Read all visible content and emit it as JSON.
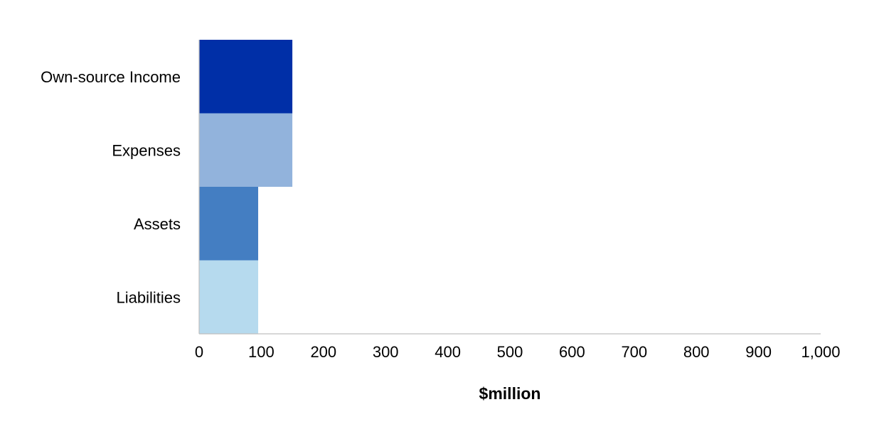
{
  "chart_data": {
    "type": "bar",
    "orientation": "horizontal",
    "categories": [
      "Own-source Income",
      "Expenses",
      "Assets",
      "Liabilities"
    ],
    "values": [
      150,
      150,
      95,
      95
    ],
    "colors": [
      "#002FA7",
      "#92B3DC",
      "#447EC2",
      "#B6DAEE"
    ],
    "xlabel": "$million",
    "ylabel": "",
    "xlim": [
      0,
      1000
    ],
    "xticks": [
      0,
      100,
      200,
      300,
      400,
      500,
      600,
      700,
      800,
      900,
      1000
    ],
    "xtick_labels": [
      "0",
      "100",
      "200",
      "300",
      "400",
      "500",
      "600",
      "700",
      "800",
      "900",
      "1,000"
    ],
    "grid": false,
    "legend": "none"
  }
}
